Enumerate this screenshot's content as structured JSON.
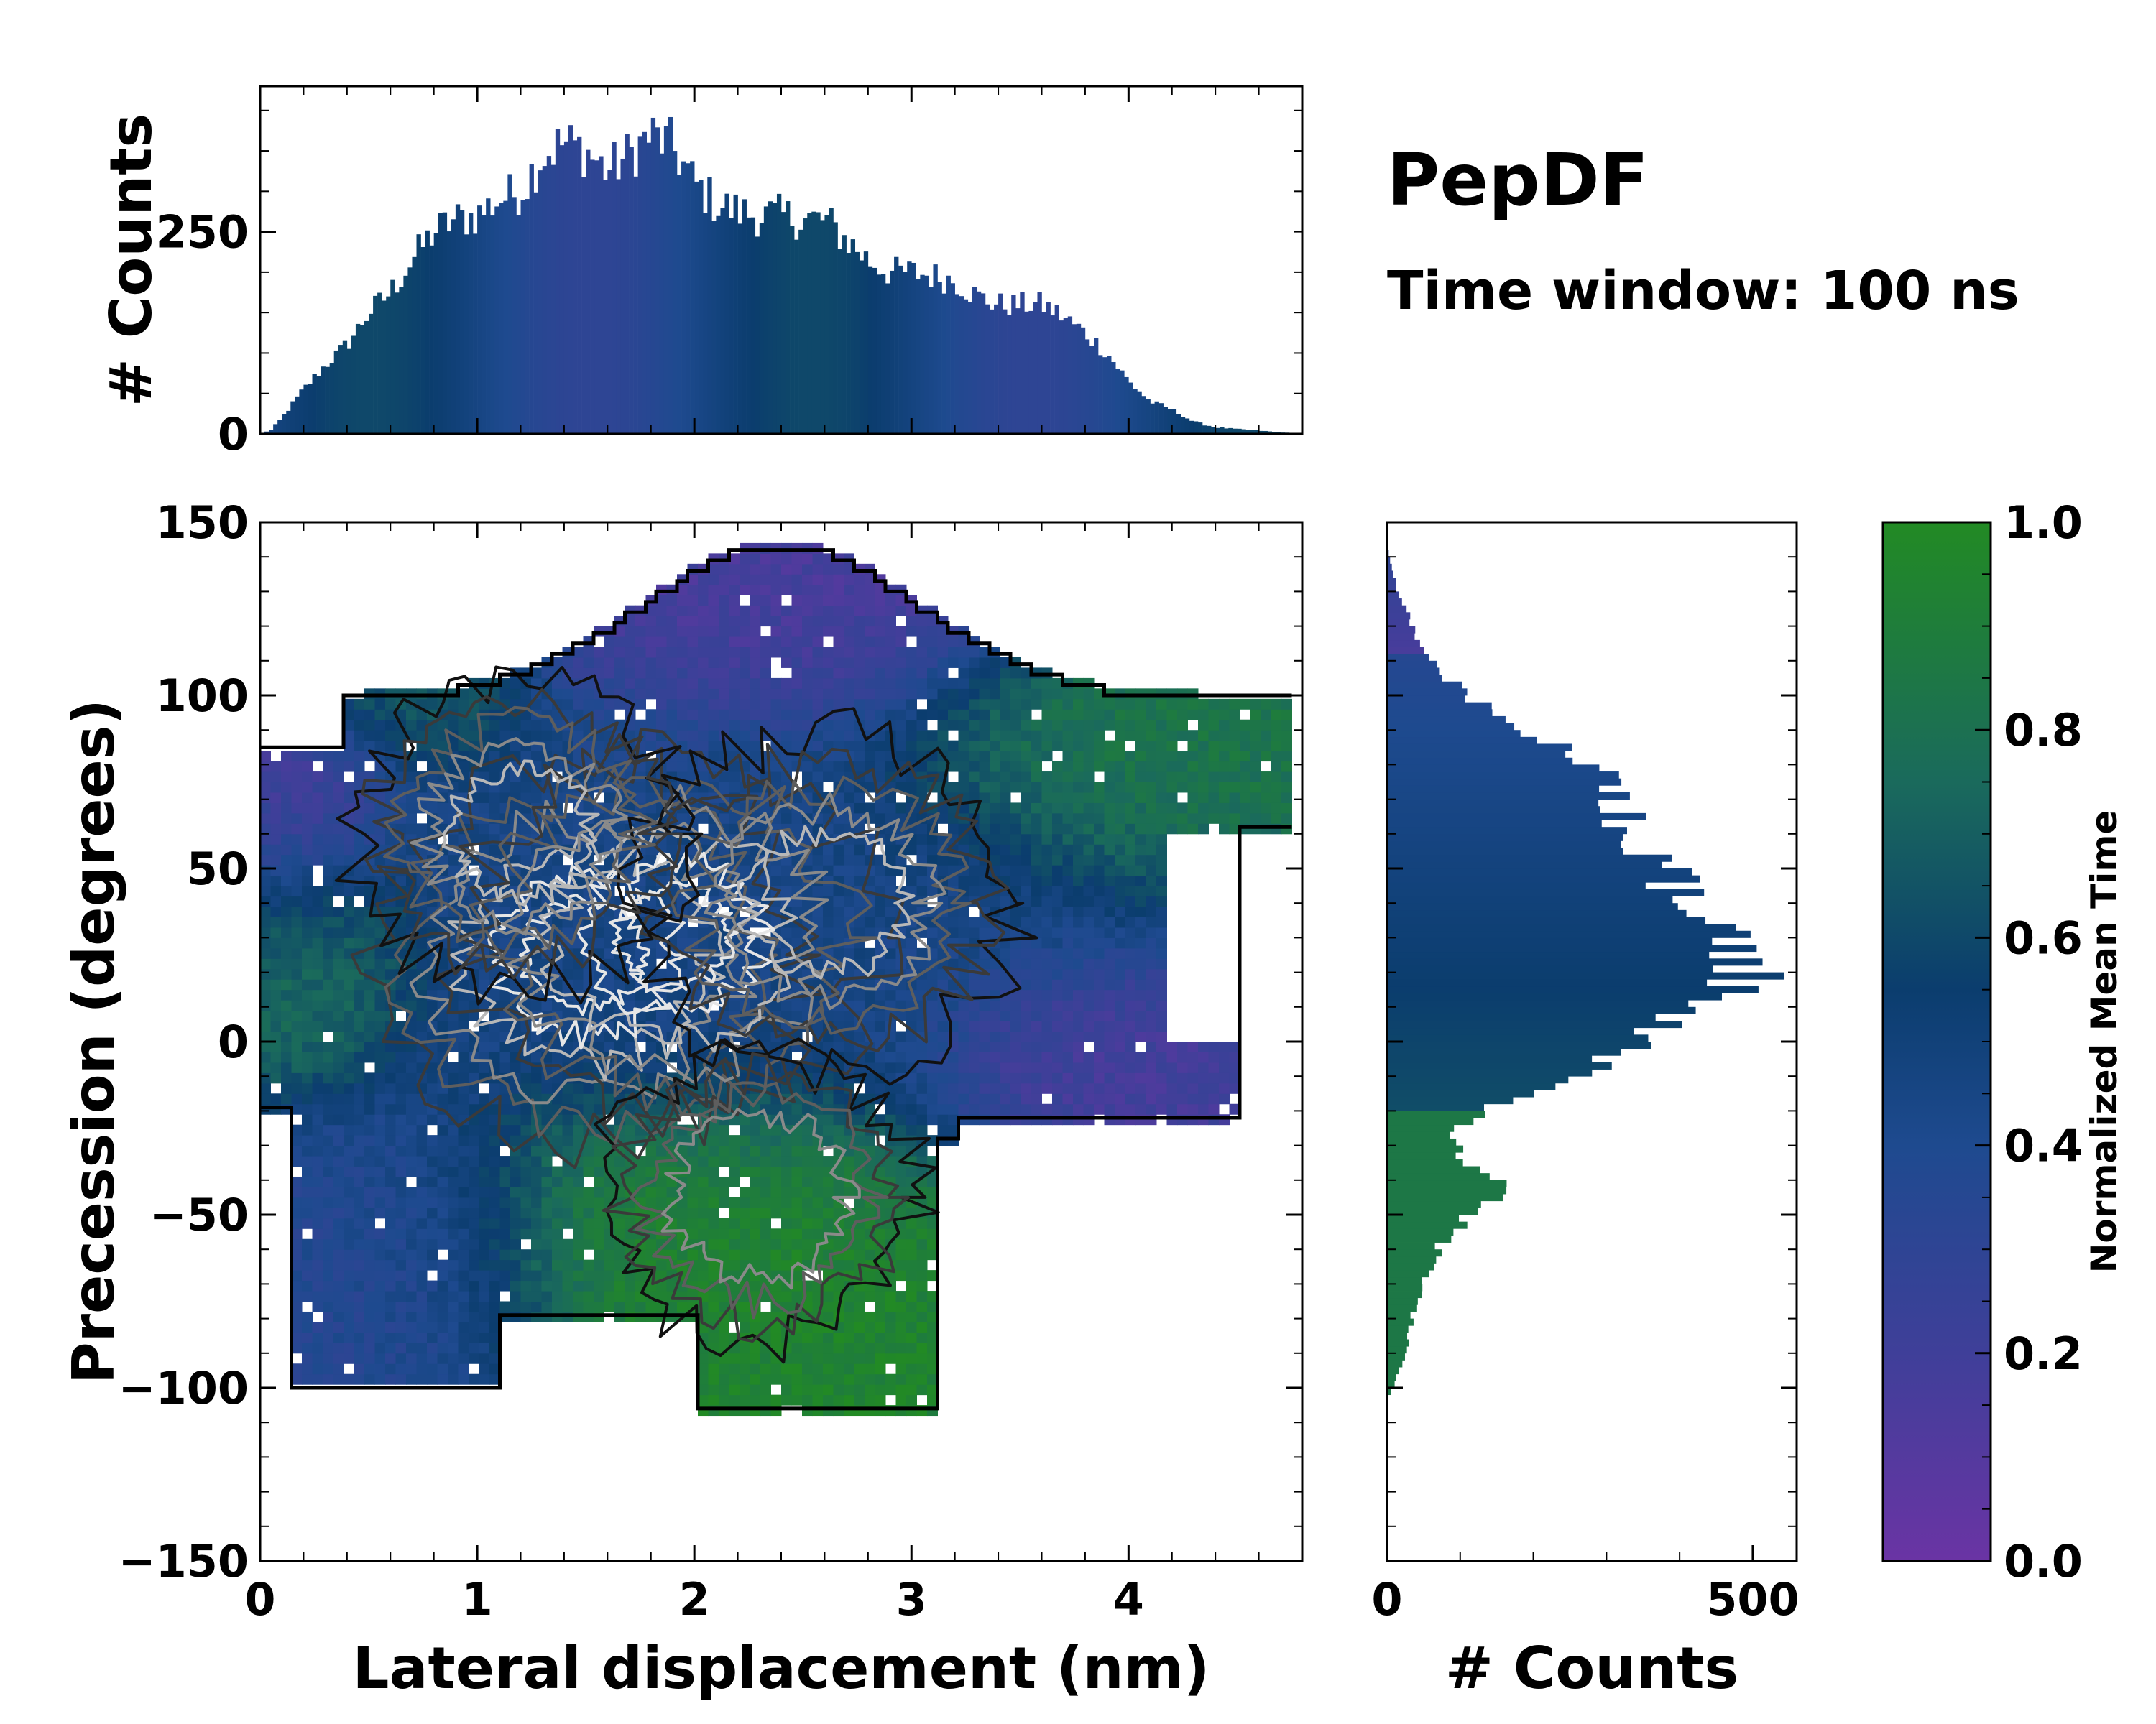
{
  "figure_title": "PepDF",
  "figure_subtitle": "Time window: 100 ns",
  "colors": {
    "low": "#6a34a4",
    "mid": "#0b3d6e",
    "high": "#228a24"
  },
  "chart_data": [
    {
      "id": "top-histogram",
      "type": "bar",
      "title": "",
      "xlabel": "",
      "ylabel": "# Counts",
      "xlim": [
        0,
        4.8
      ],
      "ylim": [
        0,
        430
      ],
      "yticks": [
        {
          "value": 0,
          "label": "0"
        },
        {
          "value": 250,
          "label": "250"
        }
      ],
      "x_profile": [
        [
          0.0,
          0
        ],
        [
          0.05,
          5
        ],
        [
          0.1,
          20
        ],
        [
          0.2,
          55
        ],
        [
          0.3,
          85
        ],
        [
          0.4,
          110
        ],
        [
          0.5,
          150
        ],
        [
          0.6,
          175
        ],
        [
          0.7,
          215
        ],
        [
          0.8,
          250
        ],
        [
          0.9,
          265
        ],
        [
          1.0,
          270
        ],
        [
          1.1,
          290
        ],
        [
          1.2,
          300
        ],
        [
          1.3,
          345
        ],
        [
          1.4,
          360
        ],
        [
          1.5,
          350
        ],
        [
          1.6,
          325
        ],
        [
          1.7,
          345
        ],
        [
          1.8,
          370
        ],
        [
          1.9,
          355
        ],
        [
          2.0,
          310
        ],
        [
          2.1,
          285
        ],
        [
          2.2,
          275
        ],
        [
          2.3,
          270
        ],
        [
          2.4,
          270
        ],
        [
          2.5,
          265
        ],
        [
          2.6,
          265
        ],
        [
          2.7,
          240
        ],
        [
          2.8,
          215
        ],
        [
          2.9,
          200
        ],
        [
          3.0,
          200
        ],
        [
          3.1,
          195
        ],
        [
          3.2,
          190
        ],
        [
          3.3,
          170
        ],
        [
          3.4,
          160
        ],
        [
          3.5,
          160
        ],
        [
          3.6,
          160
        ],
        [
          3.7,
          145
        ],
        [
          3.8,
          125
        ],
        [
          3.9,
          100
        ],
        [
          4.0,
          65
        ],
        [
          4.1,
          40
        ],
        [
          4.2,
          30
        ],
        [
          4.3,
          15
        ],
        [
          4.4,
          8
        ],
        [
          4.5,
          6
        ],
        [
          4.6,
          4
        ],
        [
          4.7,
          2
        ],
        [
          4.8,
          0
        ]
      ],
      "bin_width": 0.02
    },
    {
      "id": "main-heatmap",
      "type": "heatmap",
      "title": "",
      "xlabel": "Lateral displacement (nm)",
      "ylabel": "Precession (degrees)",
      "xlim": [
        0,
        4.8
      ],
      "ylim": [
        -150,
        150
      ],
      "xticks": [
        {
          "value": 0,
          "label": "0"
        },
        {
          "value": 1,
          "label": "1"
        },
        {
          "value": 2,
          "label": "2"
        },
        {
          "value": 3,
          "label": "3"
        },
        {
          "value": 4,
          "label": "4"
        }
      ],
      "yticks": [
        {
          "value": -150,
          "label": "−150"
        },
        {
          "value": -100,
          "label": "−100"
        },
        {
          "value": -50,
          "label": "−50"
        },
        {
          "value": 0,
          "label": "0"
        },
        {
          "value": 50,
          "label": "50"
        },
        {
          "value": 100,
          "label": "100"
        },
        {
          "value": 150,
          "label": "150"
        }
      ],
      "color_by": "Normalized Mean Time",
      "density_peaks": [
        {
          "x": 1.5,
          "y": 25,
          "weight": 1.0
        },
        {
          "x": 1.9,
          "y": 30,
          "weight": 0.9
        },
        {
          "x": 2.6,
          "y": 40,
          "weight": 0.7
        },
        {
          "x": 1.2,
          "y": 60,
          "weight": 0.5
        },
        {
          "x": 2.3,
          "y": -45,
          "weight": 0.4
        }
      ],
      "regions": [
        {
          "label": "upper region (violet/teal, early)",
          "x": [
            1.5,
            3.3
          ],
          "y": [
            100,
            145
          ],
          "time": 0.15
        },
        {
          "label": "top-left teal block",
          "x": [
            0.3,
            1.0
          ],
          "y": [
            90,
            120
          ],
          "time": 0.7
        },
        {
          "label": "left violet edge",
          "x": [
            0.0,
            0.4
          ],
          "y": [
            40,
            95
          ],
          "time": 0.15
        },
        {
          "label": "left green band",
          "x": [
            0.0,
            0.5
          ],
          "y": [
            0,
            50
          ],
          "time": 0.8
        },
        {
          "label": "right green region",
          "x": [
            3.2,
            4.7
          ],
          "y": [
            60,
            110
          ],
          "time": 0.85
        },
        {
          "label": "right violet region",
          "x": [
            3.3,
            4.3
          ],
          "y": [
            -25,
            10
          ],
          "time": 0.15
        },
        {
          "label": "lower green region",
          "x": [
            1.1,
            3.1
          ],
          "y": [
            -90,
            -25
          ],
          "time": 0.95
        },
        {
          "label": "lower-left blue region",
          "x": [
            0.1,
            1.2
          ],
          "y": [
            -100,
            -30
          ],
          "time": 0.35
        },
        {
          "label": "central blue region",
          "x": [
            0.5,
            3.8
          ],
          "y": [
            -20,
            95
          ],
          "time": 0.45
        }
      ]
    },
    {
      "id": "right-histogram",
      "type": "bar",
      "orientation": "horizontal",
      "title": "",
      "xlabel": "# Counts",
      "ylabel": "",
      "xlim": [
        0,
        560
      ],
      "ylim": [
        -150,
        150
      ],
      "xticks": [
        {
          "value": 0,
          "label": "0"
        },
        {
          "value": 500,
          "label": "500"
        }
      ],
      "y_profile": [
        [
          -104,
          0
        ],
        [
          -100,
          8
        ],
        [
          -95,
          15
        ],
        [
          -90,
          25
        ],
        [
          -85,
          30
        ],
        [
          -80,
          35
        ],
        [
          -75,
          40
        ],
        [
          -70,
          50
        ],
        [
          -65,
          60
        ],
        [
          -60,
          70
        ],
        [
          -55,
          90
        ],
        [
          -50,
          110
        ],
        [
          -45,
          150
        ],
        [
          -42,
          165
        ],
        [
          -40,
          155
        ],
        [
          -35,
          115
        ],
        [
          -30,
          90
        ],
        [
          -25,
          90
        ],
        [
          -22,
          120
        ],
        [
          -18,
          160
        ],
        [
          -15,
          200
        ],
        [
          -10,
          250
        ],
        [
          -5,
          300
        ],
        [
          0,
          340
        ],
        [
          5,
          390
        ],
        [
          10,
          430
        ],
        [
          15,
          470
        ],
        [
          20,
          490
        ],
        [
          25,
          470
        ],
        [
          30,
          450
        ],
        [
          35,
          440
        ],
        [
          40,
          420
        ],
        [
          45,
          400
        ],
        [
          50,
          370
        ],
        [
          55,
          340
        ],
        [
          60,
          325
        ],
        [
          65,
          320
        ],
        [
          70,
          330
        ],
        [
          75,
          295
        ],
        [
          80,
          270
        ],
        [
          85,
          230
        ],
        [
          90,
          180
        ],
        [
          95,
          150
        ],
        [
          100,
          110
        ],
        [
          105,
          80
        ],
        [
          110,
          60
        ],
        [
          115,
          45
        ],
        [
          120,
          35
        ],
        [
          125,
          25
        ],
        [
          130,
          15
        ],
        [
          135,
          8
        ],
        [
          140,
          3
        ],
        [
          146,
          0
        ]
      ],
      "bin_width": 2
    },
    {
      "id": "colorbar",
      "type": "colorbar",
      "label": "Normalized Mean Time",
      "range": [
        0,
        1
      ],
      "ticks": [
        {
          "value": 0.0,
          "label": "0.0"
        },
        {
          "value": 0.2,
          "label": "0.2"
        },
        {
          "value": 0.4,
          "label": "0.4"
        },
        {
          "value": 0.6,
          "label": "0.6"
        },
        {
          "value": 0.8,
          "label": "0.8"
        },
        {
          "value": 1.0,
          "label": "1.0"
        }
      ]
    }
  ]
}
